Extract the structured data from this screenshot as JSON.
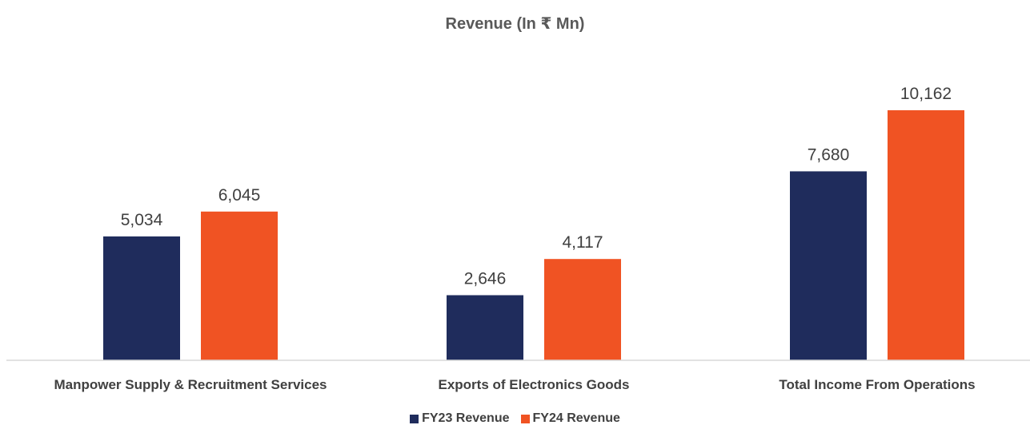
{
  "chart_data": {
    "type": "bar",
    "title": "Revenue (In ₹ Mn)",
    "xlabel": "",
    "ylabel": "",
    "categories": [
      "Manpower Supply & Recruitment Services",
      "Exports of Electronics Goods",
      "Total Income From Operations"
    ],
    "series": [
      {
        "name": "FY23 Revenue",
        "color": "#1f2c5c",
        "values": [
          5034,
          2646,
          7680
        ],
        "labels": [
          "5,034",
          "2,646",
          "7,680"
        ]
      },
      {
        "name": "FY24 Revenue",
        "color": "#f05323",
        "values": [
          6045,
          4117,
          10162
        ],
        "labels": [
          "6,045",
          "4,117",
          "10,162"
        ]
      }
    ],
    "ylim": [
      0,
      12000
    ],
    "grid": false,
    "legend": "bottom-center"
  }
}
